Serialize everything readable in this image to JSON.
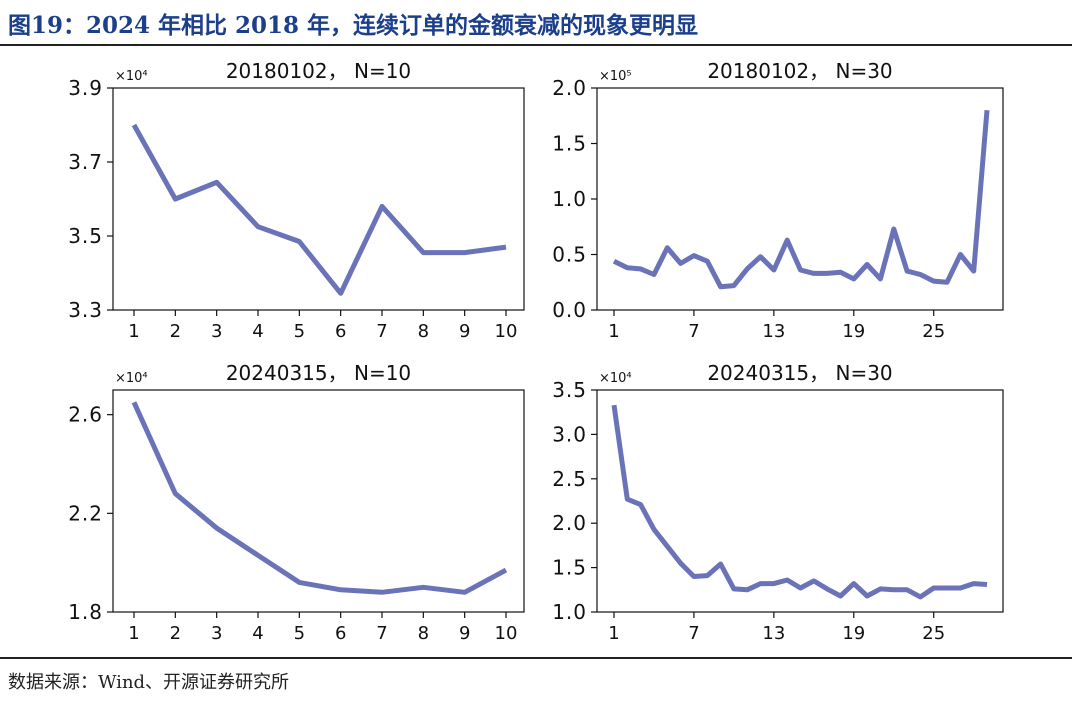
{
  "figure": {
    "title": "图19：2024 年相比 2018 年，连续订单的金额衰减的现象更明显",
    "source": "数据来源：Wind、开源证券研究所"
  },
  "colors": {
    "line": "#6a73b8",
    "axis": "#111111"
  },
  "chart_data": [
    {
      "type": "line",
      "title": "20180102， N=10",
      "multiplier": "×10⁴",
      "x": [
        1,
        2,
        3,
        4,
        5,
        6,
        7,
        8,
        9,
        10
      ],
      "xticks": [
        "1",
        "2",
        "3",
        "4",
        "5",
        "6",
        "7",
        "8",
        "9",
        "10"
      ],
      "ylim": [
        3.3,
        3.9
      ],
      "yticks": [
        "3.3",
        "3.5",
        "3.7",
        "3.9"
      ],
      "series": [
        {
          "values": [
            3.8,
            3.6,
            3.645,
            3.525,
            3.485,
            3.345,
            3.58,
            3.455,
            3.455,
            3.47
          ]
        }
      ],
      "grid": false
    },
    {
      "type": "line",
      "title": "20180102， N=30",
      "multiplier": "×10⁵",
      "x": [
        1,
        2,
        3,
        4,
        5,
        6,
        7,
        8,
        9,
        10,
        11,
        12,
        13,
        14,
        15,
        16,
        17,
        18,
        19,
        20,
        21,
        22,
        23,
        24,
        25,
        26,
        27,
        28,
        29
      ],
      "xticks": [
        "1",
        "7",
        "13",
        "19",
        "25"
      ],
      "ylim": [
        0.0,
        2.0
      ],
      "yticks": [
        "0.0",
        "0.5",
        "1.0",
        "1.5",
        "2.0"
      ],
      "series": [
        {
          "values": [
            0.44,
            0.38,
            0.37,
            0.32,
            0.56,
            0.42,
            0.49,
            0.44,
            0.21,
            0.22,
            0.37,
            0.48,
            0.36,
            0.63,
            0.36,
            0.33,
            0.33,
            0.34,
            0.28,
            0.41,
            0.28,
            0.73,
            0.35,
            0.32,
            0.26,
            0.25,
            0.5,
            0.35,
            1.8
          ]
        }
      ],
      "grid": false
    },
    {
      "type": "line",
      "title": "20240315， N=10",
      "multiplier": "×10⁴",
      "x": [
        1,
        2,
        3,
        4,
        5,
        6,
        7,
        8,
        9,
        10
      ],
      "xticks": [
        "1",
        "2",
        "3",
        "4",
        "5",
        "6",
        "7",
        "8",
        "9",
        "10"
      ],
      "ylim": [
        1.8,
        2.7
      ],
      "yticks": [
        "1.8",
        "2.2",
        "2.6"
      ],
      "series": [
        {
          "values": [
            2.65,
            2.28,
            2.14,
            2.03,
            1.92,
            1.89,
            1.88,
            1.9,
            1.88,
            1.97
          ]
        }
      ],
      "grid": false
    },
    {
      "type": "line",
      "title": "20240315， N=30",
      "multiplier": "×10⁴",
      "x": [
        1,
        2,
        3,
        4,
        5,
        6,
        7,
        8,
        9,
        10,
        11,
        12,
        13,
        14,
        15,
        16,
        17,
        18,
        19,
        20,
        21,
        22,
        23,
        24,
        25,
        26,
        27,
        28,
        29
      ],
      "xticks": [
        "1",
        "7",
        "13",
        "19",
        "25"
      ],
      "ylim": [
        1.0,
        3.5
      ],
      "yticks": [
        "1.0",
        "1.5",
        "2.0",
        "2.5",
        "3.0",
        "3.5"
      ],
      "series": [
        {
          "values": [
            3.33,
            2.27,
            2.21,
            1.93,
            1.74,
            1.55,
            1.4,
            1.41,
            1.54,
            1.26,
            1.25,
            1.32,
            1.32,
            1.36,
            1.27,
            1.35,
            1.26,
            1.18,
            1.32,
            1.18,
            1.26,
            1.25,
            1.25,
            1.17,
            1.27,
            1.27,
            1.27,
            1.32,
            1.31
          ]
        }
      ],
      "grid": false
    }
  ]
}
